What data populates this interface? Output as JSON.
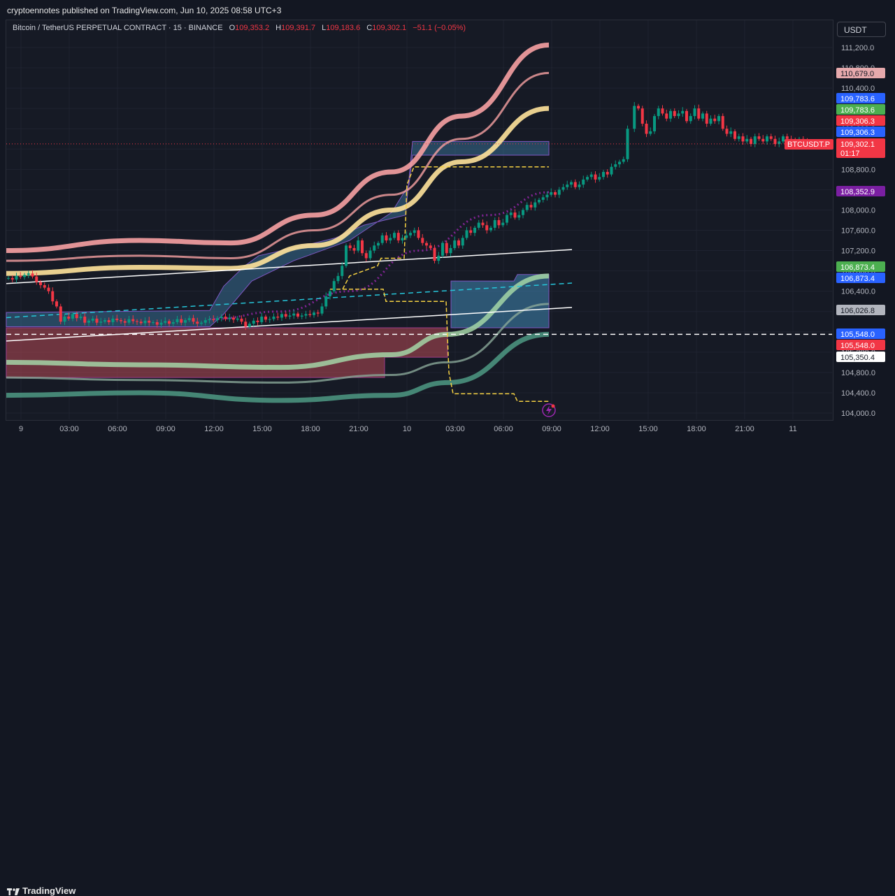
{
  "header": {
    "published_line": "cryptoennotes published on TradingView.com, Jun 10, 2025 08:58 UTC+3"
  },
  "legend": {
    "symbol": "Bitcoin / TetherUS PERPETUAL CONTRACT · 15 · BINANCE",
    "open_label": "O",
    "open_value": "109,353.2",
    "high_label": "H",
    "high_value": "109,391.7",
    "low_label": "L",
    "low_value": "109,183.6",
    "close_label": "C",
    "close_value": "109,302.1",
    "change": "−51.1 (−0.05%)"
  },
  "currency_button": "USDT",
  "brand": "TradingView",
  "colors": {
    "background": "#161a25",
    "up": "#089981",
    "down": "#f23645",
    "pink_band": "#f7a1a3",
    "yellow_band": "#ffe39b",
    "green_band_light": "#a5d6a7",
    "green_band_dark": "#4e9a84",
    "cloud_blue": "#3e7ea8",
    "cloud_red": "#b84a55",
    "purple_dots": "#9c27b0"
  },
  "chart_data": {
    "type": "candlestick",
    "symbol": "BTCUSDT.P",
    "interval": "15",
    "ylim": [
      103800,
      112000
    ],
    "y_ticks": [
      "111,200.0",
      "110,800.0",
      "110,400.0",
      "110,000.0",
      "109,600.0",
      "109,200.0",
      "108,800.0",
      "108,400.0",
      "108,000.0",
      "107,600.0",
      "107,200.0",
      "106,800.0",
      "106,400.0",
      "106,000.0",
      "105,600.0",
      "105,200.0",
      "104,800.0",
      "104,400.0",
      "104,000.0"
    ],
    "x_ticks": [
      "9",
      "03:00",
      "06:00",
      "09:00",
      "12:00",
      "15:00",
      "18:00",
      "21:00",
      "10",
      "03:00",
      "06:00",
      "09:00",
      "12:00",
      "15:00",
      "18:00",
      "21:00",
      "11"
    ],
    "closes": [
      106660,
      106630,
      106700,
      106680,
      106720,
      106750,
      106690,
      106580,
      106520,
      106470,
      106400,
      106200,
      106100,
      105800,
      105900,
      105860,
      105950,
      105870,
      105900,
      105780,
      105820,
      105860,
      105780,
      105800,
      105830,
      105790,
      105860,
      105830,
      105810,
      105780,
      105850,
      105810,
      105800,
      105770,
      105820,
      105780,
      105790,
      105740,
      105780,
      105810,
      105760,
      105790,
      105850,
      105780,
      105830,
      105870,
      105800,
      105760,
      105780,
      105830,
      105850,
      105830,
      105870,
      105900,
      105850,
      105880,
      105840,
      105860,
      105800,
      105700,
      105760,
      105820,
      105790,
      105900,
      105840,
      105850,
      105900,
      105880,
      105950,
      105900,
      105920,
      105960,
      105900,
      105920,
      105950,
      105930,
      105980,
      105960,
      106100,
      106300,
      106400,
      106600,
      106700,
      106900,
      107300,
      107250,
      107200,
      107400,
      107150,
      107050,
      107200,
      107300,
      107350,
      107500,
      107400,
      107450,
      107550,
      107400,
      107450,
      107500,
      107550,
      107600,
      107450,
      107350,
      107300,
      107250,
      107000,
      107100,
      107350,
      107150,
      107250,
      107400,
      107300,
      107450,
      107600,
      107550,
      107650,
      107750,
      107700,
      107600,
      107650,
      107800,
      107700,
      107750,
      107900,
      107950,
      107850,
      107900,
      108000,
      108100,
      108050,
      108150,
      108200,
      108250,
      108300,
      108350,
      108300,
      108400,
      108450,
      108500,
      108550,
      108450,
      108500,
      108600,
      108650,
      108700,
      108600,
      108650,
      108750,
      108700,
      108850,
      108900,
      108950,
      109000,
      109600,
      110050,
      110000,
      109700,
      109500,
      109550,
      109850,
      110000,
      109900,
      109800,
      109950,
      109850,
      109900,
      109950,
      109750,
      109850,
      110000,
      109800,
      109900,
      109700,
      109800,
      109750,
      109850,
      109600,
      109500,
      109550,
      109400,
      109450,
      109350,
      109400,
      109300,
      109450,
      109400,
      109350,
      109450,
      109400,
      109300,
      109350,
      109450,
      109400,
      109350,
      109300,
      109400,
      109350,
      109250,
      109302.1
    ],
    "price_lines": [
      {
        "label": "110,679.0",
        "value": 110679.0,
        "color": "#e6a9ac",
        "text_color": "#131722"
      },
      {
        "label": "109,783.6",
        "value": 109783.6,
        "color": "#2962ff",
        "text_color": "#ffffff"
      },
      {
        "label": "109,783.6",
        "value": 109783.6,
        "color": "#4caf50",
        "text_color": "#ffffff"
      },
      {
        "label": "109,306.3",
        "value": 109306.3,
        "color": "#f23645",
        "text_color": "#ffffff"
      },
      {
        "label": "109,306.3",
        "value": 109306.3,
        "color": "#2962ff",
        "text_color": "#ffffff"
      },
      {
        "label": "109,302.1",
        "value": 109302.1,
        "color": "#f23645",
        "text_color": "#ffffff",
        "sub": "01:17",
        "tag": "BTCUSDT.P"
      },
      {
        "label": "108,352.9",
        "value": 108352.9,
        "color": "#7b1fa2",
        "text_color": "#ffffff"
      },
      {
        "label": "106,873.4",
        "value": 106873.4,
        "color": "#4caf50",
        "text_color": "#ffffff"
      },
      {
        "label": "106,873.4",
        "value": 106873.4,
        "color": "#2962ff",
        "text_color": "#ffffff"
      },
      {
        "label": "106,026.8",
        "value": 106026.8,
        "color": "#b2b5be",
        "text_color": "#131722"
      },
      {
        "label": "105,548.0",
        "value": 105548.0,
        "color": "#2962ff",
        "text_color": "#ffffff"
      },
      {
        "label": "105,548.0",
        "value": 105548.0,
        "color": "#f23645",
        "text_color": "#ffffff"
      },
      {
        "label": "105,350.4",
        "value": 105350.4,
        "color": "#ffffff",
        "text_color": "#131722"
      }
    ]
  }
}
